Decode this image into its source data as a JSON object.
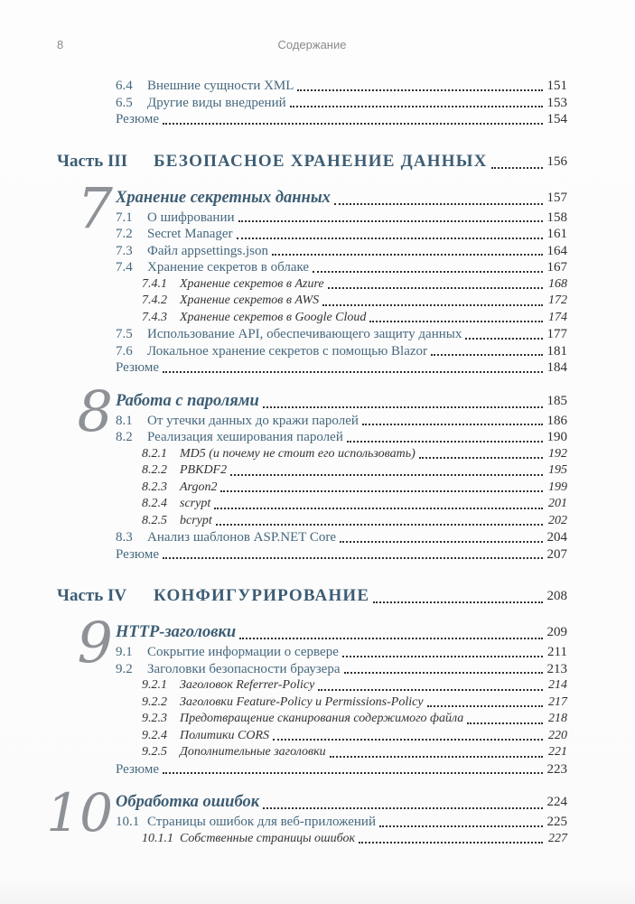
{
  "colors": {
    "accent": "#46687e",
    "heading": "#3d5d74",
    "numeral": "#8e9296",
    "text": "#2f2f2f",
    "muted": "#8b8b8b",
    "paper": "#fdfdfd"
  },
  "header": {
    "folio": "8",
    "running_title": "Содержание"
  },
  "sections": [
    {
      "type": "entries",
      "items": [
        {
          "level": 1,
          "num": "6.4",
          "title": "Внешние сущности XML",
          "page": "151"
        },
        {
          "level": 1,
          "num": "6.5",
          "title": "Другие виды внедрений",
          "page": "153"
        },
        {
          "level": 0,
          "num": "",
          "title": "Резюме",
          "page": "154"
        }
      ]
    },
    {
      "type": "part",
      "label": "Часть III",
      "title": "БЕЗОПАСНОЕ ХРАНЕНИЕ ДАННЫХ",
      "page": "156"
    },
    {
      "type": "chapter",
      "numeral": "7",
      "title": "Хранение секретных данных",
      "page": "157",
      "items": [
        {
          "level": 1,
          "num": "7.1",
          "title": "О шифровании",
          "page": "158"
        },
        {
          "level": 1,
          "num": "7.2",
          "title": "Secret Manager",
          "page": "161"
        },
        {
          "level": 1,
          "num": "7.3",
          "title": "Файл appsettings.json",
          "page": "164"
        },
        {
          "level": 1,
          "num": "7.4",
          "title": "Хранение секретов в облаке",
          "page": "167"
        },
        {
          "level": 2,
          "num": "7.4.1",
          "title": "Хранение секретов в Azure",
          "page": "168"
        },
        {
          "level": 2,
          "num": "7.4.2",
          "title": "Хранение секретов в AWS",
          "page": "172"
        },
        {
          "level": 2,
          "num": "7.4.3",
          "title": "Хранение секретов в Google Cloud",
          "page": "174"
        },
        {
          "level": 1,
          "num": "7.5",
          "title": "Использование API, обеспечивающего защиту данных",
          "page": "177"
        },
        {
          "level": 1,
          "num": "7.6",
          "title": "Локальное хранение секретов с помощью Blazor",
          "page": "181"
        },
        {
          "level": 0,
          "num": "",
          "title": "Резюме",
          "page": "184"
        }
      ]
    },
    {
      "type": "chapter",
      "numeral": "8",
      "title": "Работа с паролями",
      "page": "185",
      "items": [
        {
          "level": 1,
          "num": "8.1",
          "title": "От утечки данных до кражи паролей",
          "page": "186"
        },
        {
          "level": 1,
          "num": "8.2",
          "title": "Реализация хеширования паролей",
          "page": "190"
        },
        {
          "level": 2,
          "num": "8.2.1",
          "title": "MD5 (и почему не стоит его использовать)",
          "page": "192"
        },
        {
          "level": 2,
          "num": "8.2.2",
          "title": "PBKDF2",
          "page": "195"
        },
        {
          "level": 2,
          "num": "8.2.3",
          "title": "Argon2",
          "page": "199"
        },
        {
          "level": 2,
          "num": "8.2.4",
          "title": "scrypt",
          "page": "201"
        },
        {
          "level": 2,
          "num": "8.2.5",
          "title": "bcrypt",
          "page": "202"
        },
        {
          "level": 1,
          "num": "8.3",
          "title": "Анализ шаблонов ASP.NET Core",
          "page": "204"
        },
        {
          "level": 0,
          "num": "",
          "title": "Резюме",
          "page": "207"
        }
      ]
    },
    {
      "type": "part",
      "label": "Часть IV",
      "title": "КОНФИГУРИРОВАНИЕ",
      "page": "208"
    },
    {
      "type": "chapter",
      "numeral": "9",
      "title": "HTTP-заголовки",
      "page": "209",
      "items": [
        {
          "level": 1,
          "num": "9.1",
          "title": "Сокрытие информации о сервере",
          "page": "211"
        },
        {
          "level": 1,
          "num": "9.2",
          "title": "Заголовки безопасности браузера",
          "page": "213"
        },
        {
          "level": 2,
          "num": "9.2.1",
          "title": "Заголовок Referrer-Policy",
          "page": "214"
        },
        {
          "level": 2,
          "num": "9.2.2",
          "title": "Заголовки Feature-Policy и Permissions-Policy",
          "page": "217"
        },
        {
          "level": 2,
          "num": "9.2.3",
          "title": "Предотвращение сканирования содержимого файла",
          "page": "218"
        },
        {
          "level": 2,
          "num": "9.2.4",
          "title": "Политики CORS",
          "page": "220"
        },
        {
          "level": 2,
          "num": "9.2.5",
          "title": "Дополнительные заголовки",
          "page": "221"
        },
        {
          "level": 0,
          "num": "",
          "title": "Резюме",
          "page": "223"
        }
      ]
    },
    {
      "type": "chapter",
      "numeral": "10",
      "title": "Обработка ошибок",
      "page": "224",
      "items": [
        {
          "level": 1,
          "num": "10.1",
          "title": "Страницы ошибок для веб-приложений",
          "page": "225"
        },
        {
          "level": 2,
          "num": "10.1.1",
          "title": "Собственные страницы ошибок",
          "page": "227"
        }
      ]
    }
  ]
}
